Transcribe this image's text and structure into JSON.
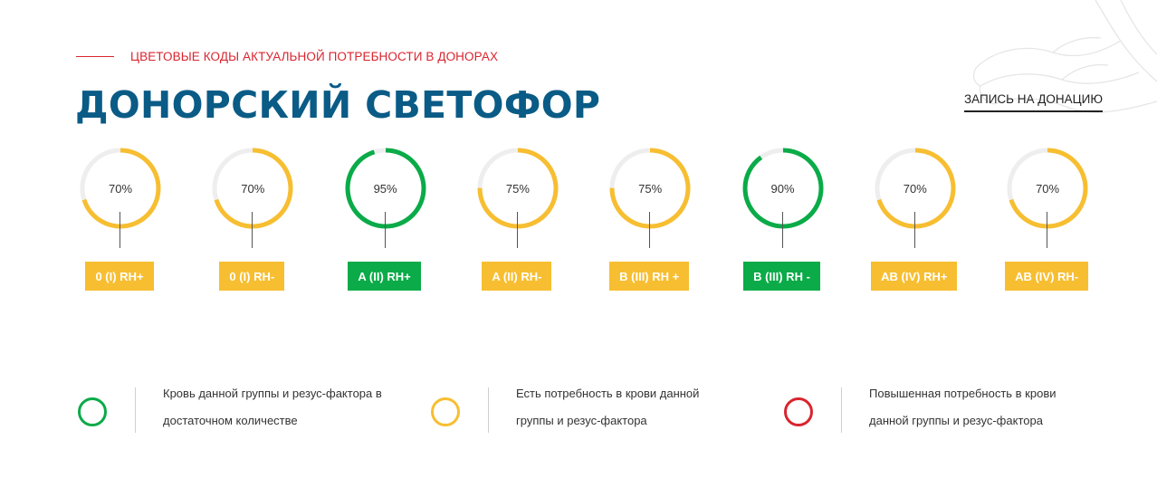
{
  "header": {
    "eyebrow": "ЦВЕТОВЫЕ КОДЫ АКТУАЛЬНОЙ ПОТРЕБНОСТИ В ДОНОРАХ",
    "title": "ДОНОРСКИЙ СВЕТОФОР",
    "cta": "ЗАПИСЬ НА ДОНАЦИЮ"
  },
  "colors": {
    "green": "#0aab48",
    "yellow": "#f7be31",
    "red": "#d9252f",
    "ring_track": "#eeeeee",
    "title_blue": "#0a5b86"
  },
  "groups": [
    {
      "label": "0 (I) RH+",
      "value": 0.7,
      "percent": "70%",
      "status": "yellow"
    },
    {
      "label": "0 (I) RH-",
      "value": 0.7,
      "percent": "70%",
      "status": "yellow"
    },
    {
      "label": "A (II) RH+",
      "value": 0.95,
      "percent": "95%",
      "status": "green"
    },
    {
      "label": "A (II) RH-",
      "value": 0.75,
      "percent": "75%",
      "status": "yellow"
    },
    {
      "label": "B (III) RH +",
      "value": 0.75,
      "percent": "75%",
      "status": "yellow"
    },
    {
      "label": "B (III) RH -",
      "value": 0.9,
      "percent": "90%",
      "status": "green"
    },
    {
      "label": "AB (IV) RH+",
      "value": 0.7,
      "percent": "70%",
      "status": "yellow"
    },
    {
      "label": "AB (IV) RH-",
      "value": 0.7,
      "percent": "70%",
      "status": "yellow"
    }
  ],
  "legend": [
    {
      "status": "green",
      "line1": "Кровь данной группы и резус-фактора в",
      "line2": "достаточном количестве"
    },
    {
      "status": "yellow",
      "line1": "Есть потребность в крови данной",
      "line2": "группы и резус-фактора"
    },
    {
      "status": "red",
      "line1": "Повышенная потребность в крови",
      "line2": "данной группы и резус-фактора"
    }
  ]
}
